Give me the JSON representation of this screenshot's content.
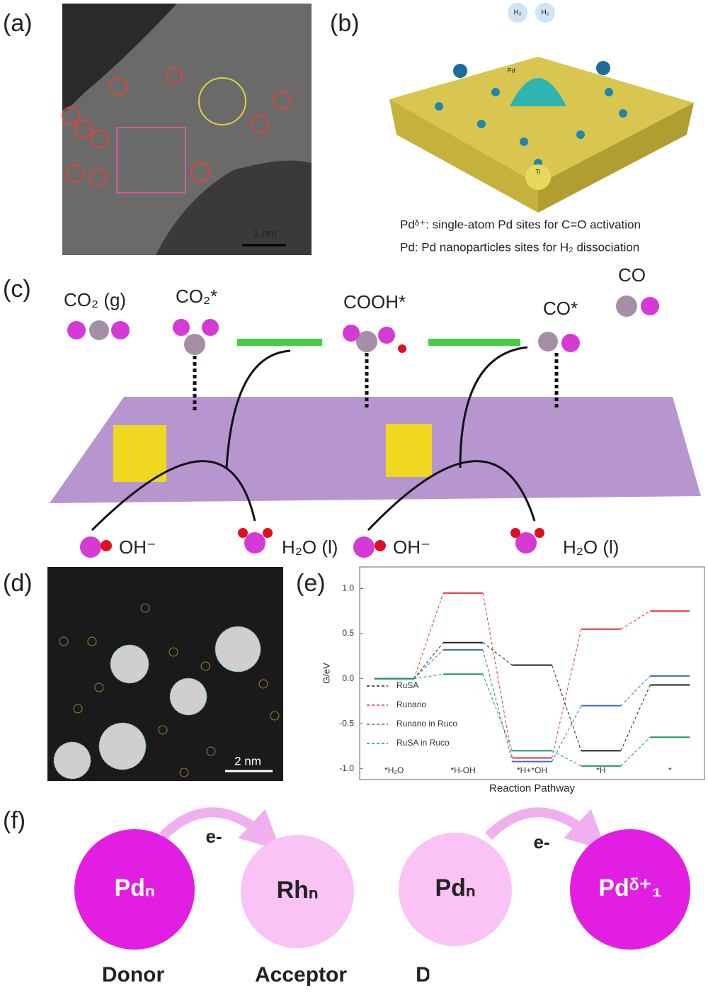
{
  "panels": {
    "a": {
      "label": "(a)",
      "scale_bar": "1 nm"
    },
    "b": {
      "label": "(b)",
      "molecules": [
        "H₂",
        "H₂"
      ],
      "atom_labels": [
        "Pd",
        "Ti"
      ],
      "caption": [
        "Pdᵟ⁺: single-atom Pd sites for C=O activation",
        "Pd: Pd nanoparticles sites for H₂ dissociation"
      ]
    },
    "c": {
      "label": "(c)",
      "species": [
        "CO₂ (g)",
        "CO₂*",
        "COOH*",
        "CO*",
        "CO"
      ],
      "products": [
        "OH⁻",
        "H₂O (l)",
        "OH⁻",
        "H₂O (l)"
      ]
    },
    "d": {
      "label": "(d)",
      "scale_bar": "2 nm"
    },
    "e": {
      "label": "(e)"
    },
    "f": {
      "label": "(f)",
      "electron": [
        "e-",
        "e-"
      ],
      "nodes": [
        "Pdₙ",
        "Rhₙ",
        "Pdₙ",
        "Pdᵟ⁺₁"
      ],
      "roles": [
        "Donor",
        "Acceptor",
        "D"
      ]
    }
  },
  "chart_data": {
    "type": "energy-profile",
    "y_label": "G/eV",
    "x_label": "Reaction Pathway",
    "categories": [
      "*H₂O",
      "*H-OH",
      "*H+*OH",
      "*H",
      "*"
    ],
    "ylim": [
      -1.12,
      1.24
    ],
    "yticks": [
      {
        "value": -1,
        "label": "-1.0"
      },
      -0.5,
      {
        "value": 0,
        "label": "0.0"
      },
      0.5,
      {
        "value": 1,
        "label": "1.0"
      }
    ],
    "series": [
      {
        "name": "RuSA",
        "color": "#222222",
        "values": [
          0,
          0.4,
          0.15,
          -0.8,
          -0.07
        ]
      },
      {
        "name": "Runano",
        "color": "#e8322d",
        "values": [
          0,
          0.95,
          -0.88,
          0.55,
          0.75
        ]
      },
      {
        "name": "Runano in Ruco",
        "color": "#3a6fc4",
        "values": [
          0,
          0.32,
          -0.92,
          -0.3,
          0.03
        ]
      },
      {
        "name": "RuSA in Ruco",
        "color": "#1f9a5a",
        "values": [
          0,
          0.05,
          -0.8,
          -0.97,
          -0.65
        ]
      }
    ]
  }
}
